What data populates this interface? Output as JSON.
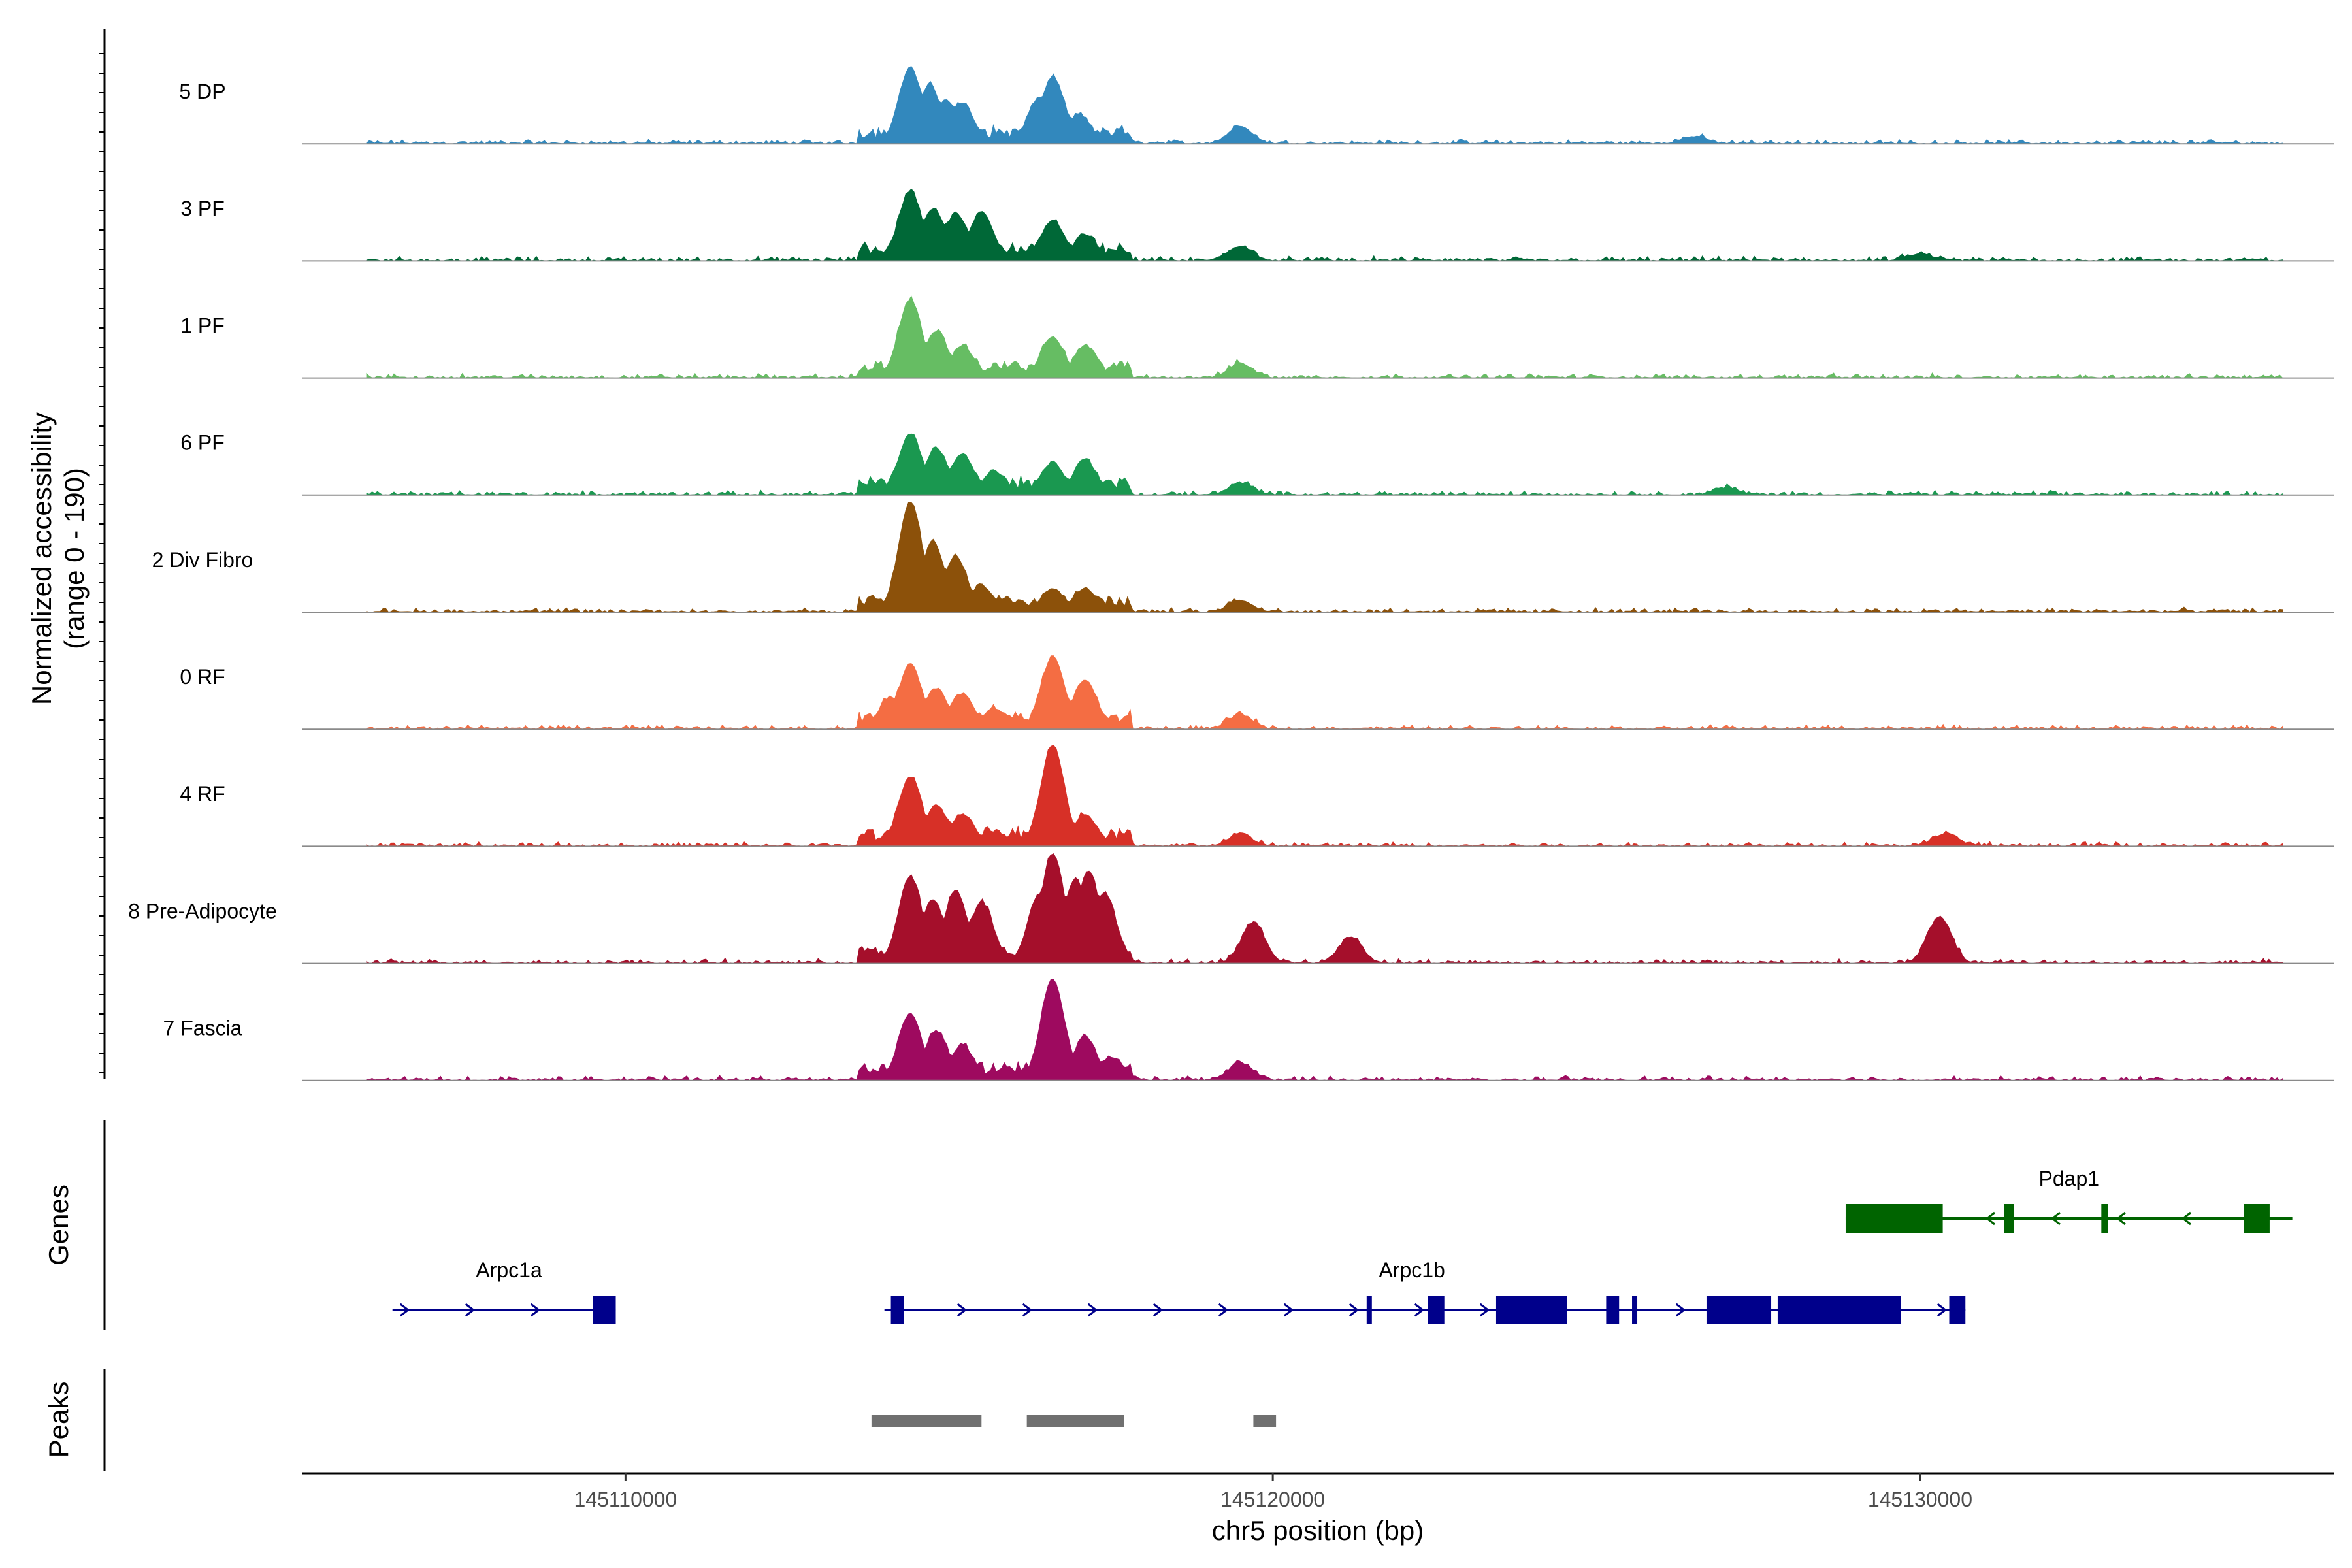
{
  "chart_data": {
    "type": "area",
    "region": {
      "chromosome": "chr5",
      "start": 145105000,
      "end": 145136400
    },
    "y_axis": {
      "title": "Normalized accessibility",
      "subtitle": "(range 0 - 190)",
      "ylim": [
        0,
        190
      ]
    },
    "x_axis": {
      "title": "chr5 position (bp)",
      "ticks": [
        145110000,
        145120000,
        145130000
      ],
      "tick_labels": [
        "145110000",
        "145120000",
        "145130000"
      ]
    },
    "panel_labels": {
      "genes": "Genes",
      "peaks": "Peaks"
    },
    "series": [
      {
        "name": "5 DP",
        "color": "#3288bd",
        "peaks": [
          [
            145114400,
            130
          ],
          [
            145114700,
            100
          ],
          [
            145114950,
            75
          ],
          [
            145115200,
            70
          ],
          [
            145116600,
            115
          ],
          [
            145116400,
            80
          ],
          [
            145117000,
            50
          ],
          [
            145119500,
            30
          ],
          [
            145126500,
            12
          ]
        ]
      },
      {
        "name": "3 PF",
        "color": "#006837",
        "peaks": [
          [
            145114400,
            120
          ],
          [
            145114750,
            90
          ],
          [
            145115100,
            80
          ],
          [
            145115500,
            85
          ],
          [
            145116600,
            70
          ],
          [
            145117100,
            45
          ],
          [
            145119500,
            25
          ],
          [
            145130000,
            12
          ]
        ]
      },
      {
        "name": "1 PF",
        "color": "#66bd63",
        "peaks": [
          [
            145114400,
            135
          ],
          [
            145114800,
            80
          ],
          [
            145115200,
            55
          ],
          [
            145116600,
            70
          ],
          [
            145117100,
            55
          ],
          [
            145119500,
            25
          ]
        ]
      },
      {
        "name": "6 PF",
        "color": "#1a9850",
        "peaks": [
          [
            145114400,
            105
          ],
          [
            145114800,
            80
          ],
          [
            145115200,
            70
          ],
          [
            145115700,
            40
          ],
          [
            145116600,
            55
          ],
          [
            145117100,
            60
          ],
          [
            145119500,
            20
          ],
          [
            145127000,
            12
          ]
        ]
      },
      {
        "name": "2 Div Fibro",
        "color": "#8c510a",
        "peaks": [
          [
            145114400,
            190
          ],
          [
            145114750,
            120
          ],
          [
            145115100,
            95
          ],
          [
            145115500,
            45
          ],
          [
            145116600,
            40
          ],
          [
            145117100,
            40
          ],
          [
            145119500,
            20
          ]
        ]
      },
      {
        "name": "0 RF",
        "color": "#f46d43",
        "peaks": [
          [
            145114100,
            55
          ],
          [
            145114400,
            110
          ],
          [
            145114800,
            70
          ],
          [
            145115200,
            60
          ],
          [
            145115700,
            35
          ],
          [
            145116600,
            125
          ],
          [
            145117100,
            85
          ],
          [
            145119500,
            25
          ]
        ]
      },
      {
        "name": "4 RF",
        "color": "#d73027",
        "peaks": [
          [
            145114400,
            120
          ],
          [
            145114800,
            70
          ],
          [
            145115200,
            55
          ],
          [
            145115700,
            25
          ],
          [
            145116600,
            175
          ],
          [
            145117100,
            55
          ],
          [
            145119500,
            20
          ],
          [
            145130400,
            22
          ]
        ]
      },
      {
        "name": "8 Pre-Adipocyte",
        "color": "#a50f2b",
        "peaks": [
          [
            145114400,
            150
          ],
          [
            145114750,
            110
          ],
          [
            145115100,
            125
          ],
          [
            145115500,
            105
          ],
          [
            145116400,
            120
          ],
          [
            145116600,
            190
          ],
          [
            145116950,
            145
          ],
          [
            145117150,
            160
          ],
          [
            145117400,
            120
          ],
          [
            145119700,
            70
          ],
          [
            145121200,
            45
          ],
          [
            145130300,
            80
          ]
        ]
      },
      {
        "name": "7 Fascia",
        "color": "#9e0a5f",
        "peaks": [
          [
            145114400,
            115
          ],
          [
            145114800,
            85
          ],
          [
            145115200,
            60
          ],
          [
            145116600,
            175
          ],
          [
            145117100,
            75
          ],
          [
            145117500,
            40
          ],
          [
            145119500,
            30
          ]
        ]
      }
    ],
    "genes": [
      {
        "name": "Arpc1a",
        "strand": "+",
        "color": "#00008b",
        "start": 145106400,
        "end": 145109850,
        "exons": [
          [
            145109500,
            145109850
          ]
        ]
      },
      {
        "name": "Arpc1b",
        "strand": "+",
        "color": "#00008b",
        "start": 145114000,
        "end": 145130700,
        "exons": [
          [
            145114100,
            145114300
          ],
          [
            145121450,
            145121520
          ],
          [
            145122400,
            145122650
          ],
          [
            145123450,
            145124550
          ],
          [
            145125150,
            145125350
          ],
          [
            145125550,
            145125620
          ],
          [
            145126700,
            145127700
          ],
          [
            145127800,
            145129700
          ],
          [
            145130450,
            145130700
          ]
        ]
      },
      {
        "name": "Pdap1",
        "strand": "-",
        "color": "#006400",
        "start": 145128850,
        "end": 145135750,
        "exons": [
          [
            145128850,
            145130350
          ],
          [
            145131300,
            145131450
          ],
          [
            145132800,
            145132900
          ],
          [
            145135000,
            145135400
          ]
        ]
      }
    ],
    "peak_regions": [
      [
        145113800,
        145115500
      ],
      [
        145116200,
        145117700
      ],
      [
        145119700,
        145120050
      ]
    ]
  }
}
